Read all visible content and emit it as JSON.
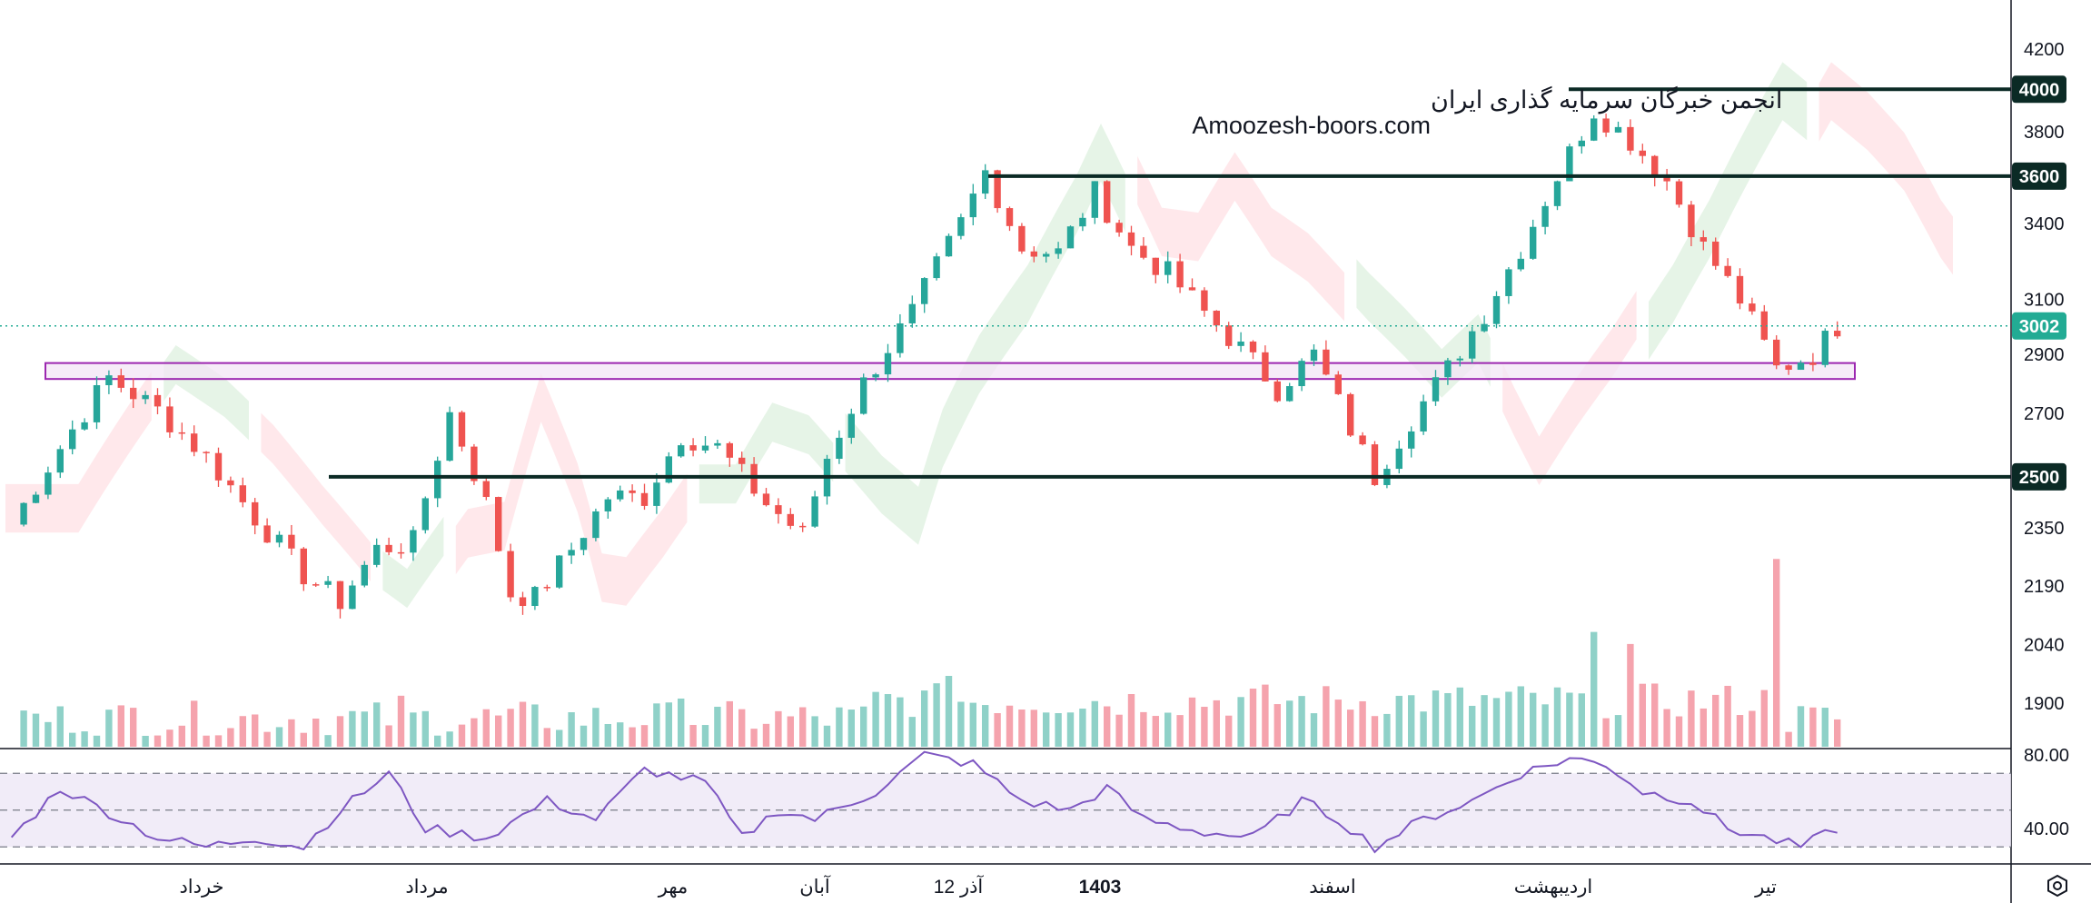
{
  "watermark": {
    "line1": "انجمن خبرگان سرمایه گذاری ایران",
    "line2": "Amoozesh-boors.com"
  },
  "colors": {
    "up": "#26a69a",
    "down": "#ef5350",
    "level_line": "#0b2a25",
    "badge_dark": "#0b2a25",
    "badge_price": "#22ab94",
    "rsi_line": "#7e57c2",
    "rsi_band": "#ede7f6",
    "support_zone_fill": "#f3e5f5",
    "support_zone_stroke": "#9c27b0",
    "cloud_bull": "#c8e6c9",
    "cloud_bear": "#ffcdd2"
  },
  "icons": {
    "settings": "settings-hexagon-icon"
  },
  "chart_data": {
    "type": "candlestick",
    "y_axis": {
      "scale": "log",
      "ticks": [
        4200,
        3800,
        3400,
        3100,
        2900,
        2700,
        2500,
        2350,
        2190,
        2040,
        1900
      ],
      "range": [
        1820,
        4400
      ]
    },
    "x_axis": {
      "labels": [
        "خرداد",
        "مرداد",
        "مهر",
        "آبان",
        "12 آذر",
        "1403",
        "اسفند",
        "اردیبهشت",
        "تیر"
      ]
    },
    "horizontal_levels": [
      {
        "value": 4000,
        "label": "4000"
      },
      {
        "value": 3600,
        "label": "3600"
      },
      {
        "value": 2500,
        "label": "2500"
      }
    ],
    "current_price": {
      "value": 3002,
      "label": "3002"
    },
    "support_zone": {
      "low": 2815,
      "high": 2870
    },
    "price_path": [
      [
        0,
        2360
      ],
      [
        8,
        2820
      ],
      [
        12,
        2710
      ],
      [
        16,
        2560
      ],
      [
        20,
        2380
      ],
      [
        24,
        2220
      ],
      [
        27,
        2150
      ],
      [
        30,
        2290
      ],
      [
        33,
        2310
      ],
      [
        36,
        2700
      ],
      [
        39,
        2420
      ],
      [
        41,
        2170
      ],
      [
        43,
        2160
      ],
      [
        46,
        2290
      ],
      [
        49,
        2440
      ],
      [
        52,
        2440
      ],
      [
        55,
        2630
      ],
      [
        58,
        2590
      ],
      [
        62,
        2420
      ],
      [
        65,
        2330
      ],
      [
        67,
        2560
      ],
      [
        70,
        2800
      ],
      [
        74,
        3050
      ],
      [
        78,
        3400
      ],
      [
        80,
        3620
      ],
      [
        83,
        3300
      ],
      [
        86,
        3280
      ],
      [
        89,
        3530
      ],
      [
        92,
        3300
      ],
      [
        95,
        3200
      ],
      [
        98,
        3050
      ],
      [
        101,
        2920
      ],
      [
        104,
        2780
      ],
      [
        107,
        2900
      ],
      [
        110,
        2650
      ],
      [
        112,
        2500
      ],
      [
        115,
        2680
      ],
      [
        118,
        2850
      ],
      [
        121,
        3050
      ],
      [
        124,
        3300
      ],
      [
        127,
        3600
      ],
      [
        130,
        3900
      ],
      [
        133,
        3760
      ],
      [
        136,
        3580
      ],
      [
        139,
        3300
      ],
      [
        142,
        3100
      ],
      [
        145,
        2850
      ],
      [
        148,
        2900
      ],
      [
        150,
        3002
      ]
    ],
    "volume_spikes": [
      {
        "i": 10,
        "v": 0.55
      },
      {
        "i": 32,
        "v": 0.72
      },
      {
        "i": 55,
        "v": 0.68
      },
      {
        "i": 77,
        "v": 1.0
      },
      {
        "i": 130,
        "v": 1.62
      },
      {
        "i": 133,
        "v": 1.45
      },
      {
        "i": 145,
        "v": 2.65
      }
    ],
    "rsi": {
      "levels": [
        70,
        50,
        30
      ],
      "ticks": [
        80.0,
        40.0
      ],
      "range": [
        20,
        85
      ],
      "path": [
        [
          0,
          35
        ],
        [
          4,
          62
        ],
        [
          7,
          52
        ],
        [
          12,
          35
        ],
        [
          16,
          30
        ],
        [
          20,
          35
        ],
        [
          24,
          30
        ],
        [
          27,
          50
        ],
        [
          31,
          70
        ],
        [
          34,
          40
        ],
        [
          39,
          35
        ],
        [
          44,
          55
        ],
        [
          48,
          45
        ],
        [
          52,
          72
        ],
        [
          57,
          65
        ],
        [
          60,
          35
        ],
        [
          63,
          50
        ],
        [
          66,
          45
        ],
        [
          71,
          60
        ],
        [
          75,
          80
        ],
        [
          79,
          75
        ],
        [
          83,
          55
        ],
        [
          87,
          50
        ],
        [
          90,
          62
        ],
        [
          93,
          45
        ],
        [
          98,
          38
        ],
        [
          102,
          35
        ],
        [
          106,
          55
        ],
        [
          109,
          45
        ],
        [
          112,
          30
        ],
        [
          116,
          45
        ],
        [
          120,
          55
        ],
        [
          124,
          70
        ],
        [
          128,
          78
        ],
        [
          131,
          75
        ],
        [
          134,
          60
        ],
        [
          138,
          55
        ],
        [
          141,
          40
        ],
        [
          144,
          35
        ],
        [
          147,
          30
        ],
        [
          150,
          40
        ]
      ]
    }
  }
}
